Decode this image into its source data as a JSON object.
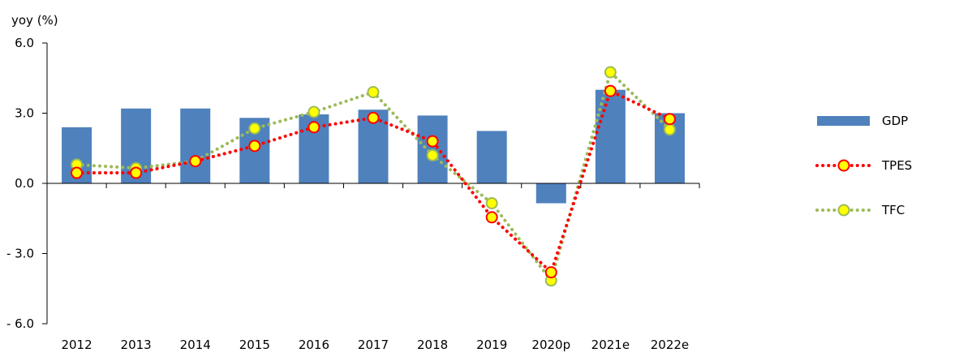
{
  "chart_data": {
    "type": "bar",
    "ylabel": "yoy (%)",
    "ylim": [
      -6.0,
      6.0
    ],
    "yticks": [
      6.0,
      3.0,
      0.0,
      -3.0,
      -6.0
    ],
    "ytick_labels": [
      "6.0",
      "3.0",
      "0.0",
      "- 3.0",
      "- 6.0"
    ],
    "categories": [
      "2012",
      "2013",
      "2014",
      "2015",
      "2016",
      "2017",
      "2018",
      "2019",
      "2020p",
      "2021e",
      "2022e"
    ],
    "series": [
      {
        "name": "GDP",
        "kind": "bar",
        "color": "#4f81bd",
        "values": [
          2.4,
          3.2,
          3.2,
          2.8,
          2.95,
          3.15,
          2.9,
          2.24,
          -0.85,
          4.0,
          3.0
        ]
      },
      {
        "name": "TPES",
        "kind": "line",
        "line_color": "#ff0000",
        "marker_fill": "#ffff00",
        "marker_edge": "#ff0000",
        "values": [
          0.45,
          0.45,
          0.95,
          1.6,
          2.4,
          2.8,
          1.8,
          -1.45,
          -3.8,
          3.95,
          2.75
        ]
      },
      {
        "name": "TFC",
        "kind": "line",
        "line_color": "#9bbb59",
        "marker_fill": "#ffff00",
        "marker_edge": "#9bbb59",
        "values": [
          0.8,
          0.65,
          0.95,
          2.35,
          3.05,
          3.9,
          1.2,
          -0.85,
          -4.15,
          4.75,
          2.3
        ]
      }
    ],
    "legend_position": "right",
    "grid": false
  }
}
